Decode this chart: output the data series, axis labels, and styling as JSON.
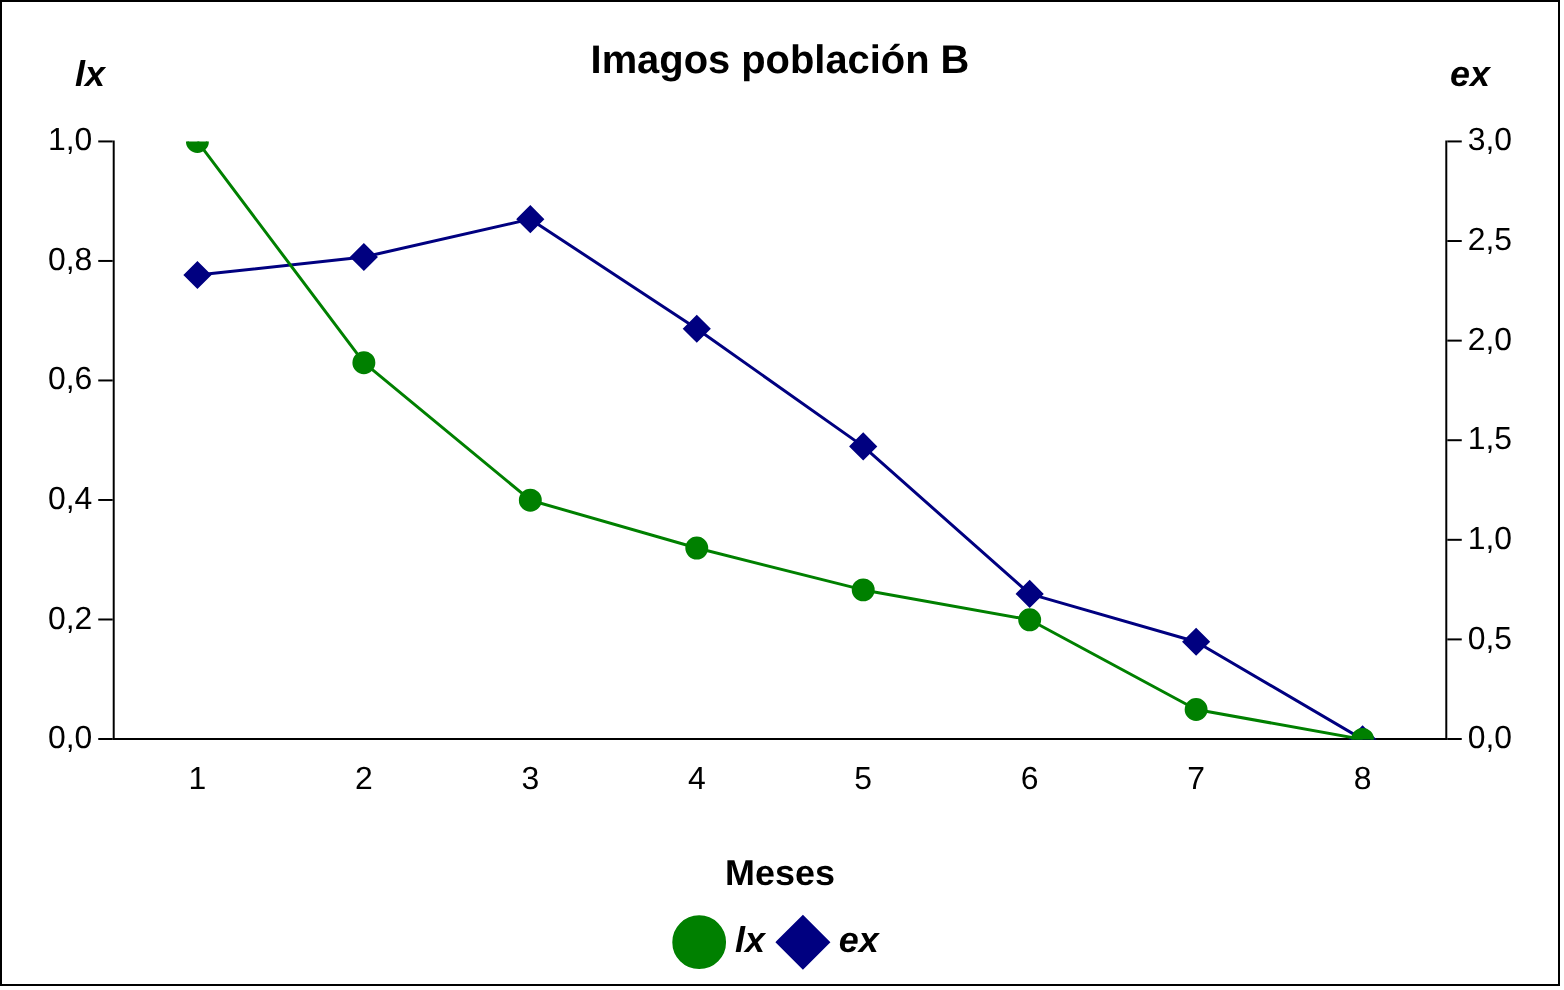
{
  "chart_data": {
    "type": "line",
    "title": "Imagos población B",
    "xlabel": "Meses",
    "ylabel": "lx",
    "y2label": "ex",
    "categories": [
      "1",
      "2",
      "3",
      "4",
      "5",
      "6",
      "7",
      "8"
    ],
    "series": [
      {
        "name": "lx",
        "color": "#008000",
        "marker": "circle",
        "values": [
          1.0,
          0.63,
          0.4,
          0.32,
          0.25,
          0.2,
          0.05,
          0.0
        ]
      },
      {
        "name": "ex",
        "color": "#000080",
        "marker": "diamond",
        "axis": "y2",
        "values": [
          2.33,
          2.42,
          2.61,
          2.06,
          1.47,
          0.73,
          0.49,
          0.0
        ]
      }
    ],
    "ylim": [
      0,
      1
    ],
    "yticks": [
      {
        "value": 0,
        "label": "0,0"
      },
      {
        "value": 0.2,
        "label": "0,2"
      },
      {
        "value": 0.4,
        "label": "0,4"
      },
      {
        "value": 0.6,
        "label": "0,6"
      },
      {
        "value": 0.8,
        "label": "0,8"
      },
      {
        "value": 1,
        "label": "1,0"
      }
    ],
    "y2lim": [
      0,
      3
    ],
    "y2ticks": [
      {
        "value": 0,
        "label": "0,0"
      },
      {
        "value": 0.5,
        "label": "0,5"
      },
      {
        "value": 1,
        "label": "1,0"
      },
      {
        "value": 1.5,
        "label": "1,5"
      },
      {
        "value": 2,
        "label": "2,0"
      },
      {
        "value": 2.5,
        "label": "2,5"
      },
      {
        "value": 3,
        "label": "3,0"
      }
    ],
    "grid": false,
    "legend": "bottom",
    "line_style": "solid"
  }
}
